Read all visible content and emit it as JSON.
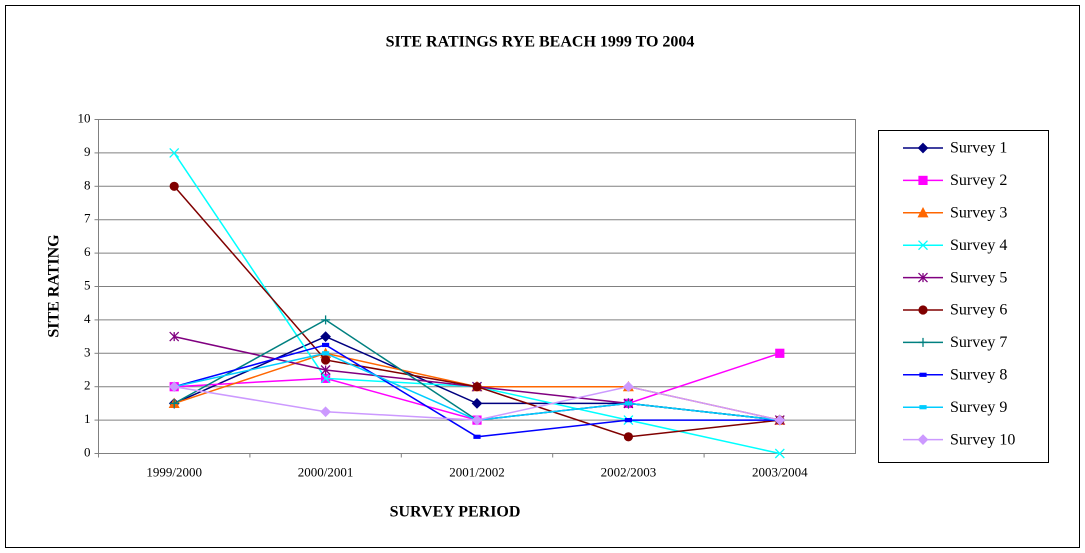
{
  "chart_data": {
    "type": "line",
    "title": "SITE RATINGS RYE BEACH 1999 TO 2004",
    "x_label": "SURVEY PERIOD",
    "y_label": "SITE RATING",
    "categories": [
      "1999/2000",
      "2000/2001",
      "2001/2002",
      "2002/2003",
      "2003/2004"
    ],
    "ylim": [
      0,
      10
    ],
    "yticks": [
      0,
      1,
      2,
      3,
      4,
      5,
      6,
      7,
      8,
      9,
      10
    ],
    "grid": true,
    "legend": "right",
    "series": [
      {
        "name": "Survey 1",
        "color": "#000080",
        "marker": "diamond",
        "values": [
          1.5,
          3.5,
          1.5,
          1.5,
          1
        ]
      },
      {
        "name": "Survey 2",
        "color": "#ff00ff",
        "marker": "square",
        "values": [
          2,
          2.25,
          1,
          1.5,
          3
        ]
      },
      {
        "name": "Survey 3",
        "color": "#ff6600",
        "marker": "triangle",
        "values": [
          1.5,
          3,
          2,
          2,
          1
        ]
      },
      {
        "name": "Survey 4",
        "color": "#00ffff",
        "marker": "x",
        "values": [
          9,
          2.25,
          2,
          1,
          0
        ]
      },
      {
        "name": "Survey 5",
        "color": "#800080",
        "marker": "asterisk",
        "values": [
          3.5,
          2.5,
          2,
          1.5,
          1
        ]
      },
      {
        "name": "Survey 6",
        "color": "#800000",
        "marker": "circle",
        "values": [
          8,
          2.8,
          2,
          0.5,
          1
        ]
      },
      {
        "name": "Survey 7",
        "color": "#008080",
        "marker": "plus",
        "values": [
          1.5,
          4,
          1,
          1.5,
          1
        ]
      },
      {
        "name": "Survey 8",
        "color": "#0000ff",
        "marker": "dash",
        "values": [
          2,
          3.25,
          0.5,
          1,
          1
        ]
      },
      {
        "name": "Survey 9",
        "color": "#00ccff",
        "marker": "dash",
        "values": [
          2,
          3,
          1,
          1.5,
          1
        ]
      },
      {
        "name": "Survey 10",
        "color": "#cc99ff",
        "marker": "diamond",
        "values": [
          2,
          1.25,
          1,
          2,
          1
        ]
      }
    ]
  }
}
